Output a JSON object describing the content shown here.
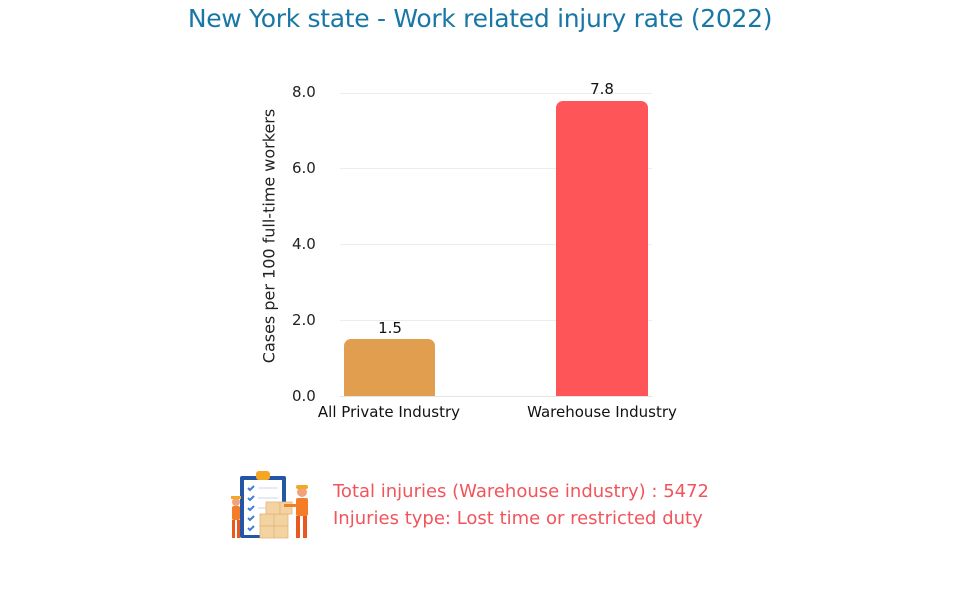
{
  "title": "New York state - Work related injury rate (2022)",
  "chart_data": {
    "type": "bar",
    "title": "New York state - Work related injury rate (2022)",
    "categories": [
      "All Private Industry",
      "Warehouse Industry"
    ],
    "values": [
      1.5,
      7.8
    ],
    "value_labels": [
      "1.5",
      "7.8"
    ],
    "colors": [
      "#e09e4e",
      "#fe5658"
    ],
    "xlabel": "",
    "ylabel": "Cases per 100 full-time workers",
    "yticks": [
      "0.0",
      "2.0",
      "4.0",
      "6.0",
      "8.0"
    ],
    "ylim": [
      0,
      8
    ],
    "grid": true,
    "legend": null
  },
  "axis": {
    "ylabel": "Cases per 100 full-time workers",
    "ticks": [
      "8.0",
      "6.0",
      "4.0",
      "2.0",
      "0.0"
    ]
  },
  "bars": [
    {
      "category": "All Private Industry",
      "value_label": "1.5",
      "color": "#e09e4e"
    },
    {
      "category": "Warehouse Industry",
      "value_label": "7.8",
      "color": "#fe5658"
    }
  ],
  "notes": {
    "total_injuries": "Total injuries (Warehouse industry) :  5472",
    "injury_type": "Injuries type: Lost time or restricted duty",
    "color": "#f2545b"
  },
  "illustration": {
    "icon": "warehouse-workers-clipboard-illustration"
  }
}
